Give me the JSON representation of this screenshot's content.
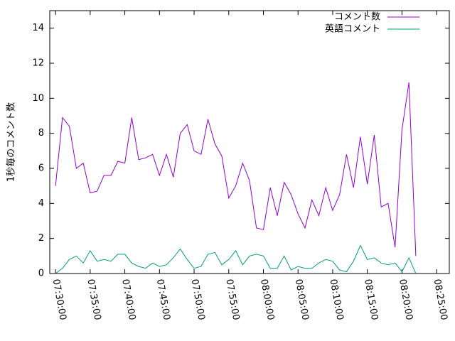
{
  "chart_data": {
    "type": "line",
    "y_label": "1秒毎のコメント数",
    "x": [
      "07:30:00",
      "07:31:00",
      "07:32:00",
      "07:33:00",
      "07:34:00",
      "07:35:00",
      "07:36:00",
      "07:37:00",
      "07:38:00",
      "07:39:00",
      "07:40:00",
      "07:41:00",
      "07:42:00",
      "07:43:00",
      "07:44:00",
      "07:45:00",
      "07:46:00",
      "07:47:00",
      "07:48:00",
      "07:49:00",
      "07:50:00",
      "07:51:00",
      "07:52:00",
      "07:53:00",
      "07:54:00",
      "07:55:00",
      "07:56:00",
      "07:57:00",
      "07:58:00",
      "07:59:00",
      "08:00:00",
      "08:01:00",
      "08:02:00",
      "08:03:00",
      "08:04:00",
      "08:05:00",
      "08:06:00",
      "08:07:00",
      "08:08:00",
      "08:09:00",
      "08:10:00",
      "08:11:00",
      "08:12:00",
      "08:13:00",
      "08:14:00",
      "08:15:00",
      "08:16:00",
      "08:17:00",
      "08:18:00",
      "08:19:00",
      "08:20:00",
      "08:21:00",
      "08:22:00"
    ],
    "series": [
      {
        "name": "コメント数",
        "color": "#9400d3",
        "values": [
          5.0,
          8.9,
          8.4,
          6.0,
          6.3,
          4.6,
          4.7,
          5.6,
          5.6,
          6.4,
          6.3,
          8.9,
          6.5,
          6.6,
          6.8,
          5.6,
          6.8,
          5.5,
          8.0,
          8.5,
          7.0,
          6.8,
          8.8,
          7.4,
          6.7,
          4.3,
          5.0,
          6.3,
          5.3,
          2.6,
          2.5,
          4.9,
          3.3,
          5.2,
          4.5,
          3.4,
          2.6,
          4.2,
          3.3,
          4.9,
          3.6,
          4.5,
          6.8,
          4.9,
          7.8,
          5.1,
          7.9,
          3.8,
          4.0,
          1.5,
          8.2,
          10.9,
          1.0
        ]
      },
      {
        "name": "英語コメント",
        "color": "#009e73",
        "values": [
          0.0,
          0.3,
          0.8,
          1.0,
          0.6,
          1.3,
          0.7,
          0.8,
          0.7,
          1.1,
          1.1,
          0.6,
          0.4,
          0.3,
          0.6,
          0.4,
          0.5,
          0.9,
          1.4,
          0.8,
          0.3,
          0.4,
          1.1,
          1.2,
          0.5,
          0.8,
          1.3,
          0.5,
          1.0,
          1.1,
          1.0,
          0.3,
          0.3,
          1.0,
          0.2,
          0.4,
          0.3,
          0.3,
          0.6,
          0.8,
          0.7,
          0.2,
          0.1,
          0.7,
          1.6,
          0.8,
          0.9,
          0.6,
          0.5,
          0.6,
          0.1,
          0.9,
          0.0
        ]
      }
    ],
    "xlim": [
      "07:29:10",
      "08:26:50"
    ],
    "xticks": [
      "07:30:00",
      "07:35:00",
      "07:40:00",
      "07:45:00",
      "07:50:00",
      "07:55:00",
      "08:00:00",
      "08:05:00",
      "08:10:00",
      "08:15:00",
      "08:20:00",
      "08:25:00"
    ],
    "ylim": [
      0,
      15
    ],
    "yticks": [
      0,
      2,
      4,
      6,
      8,
      10,
      12,
      14
    ],
    "legend": "top-right"
  }
}
